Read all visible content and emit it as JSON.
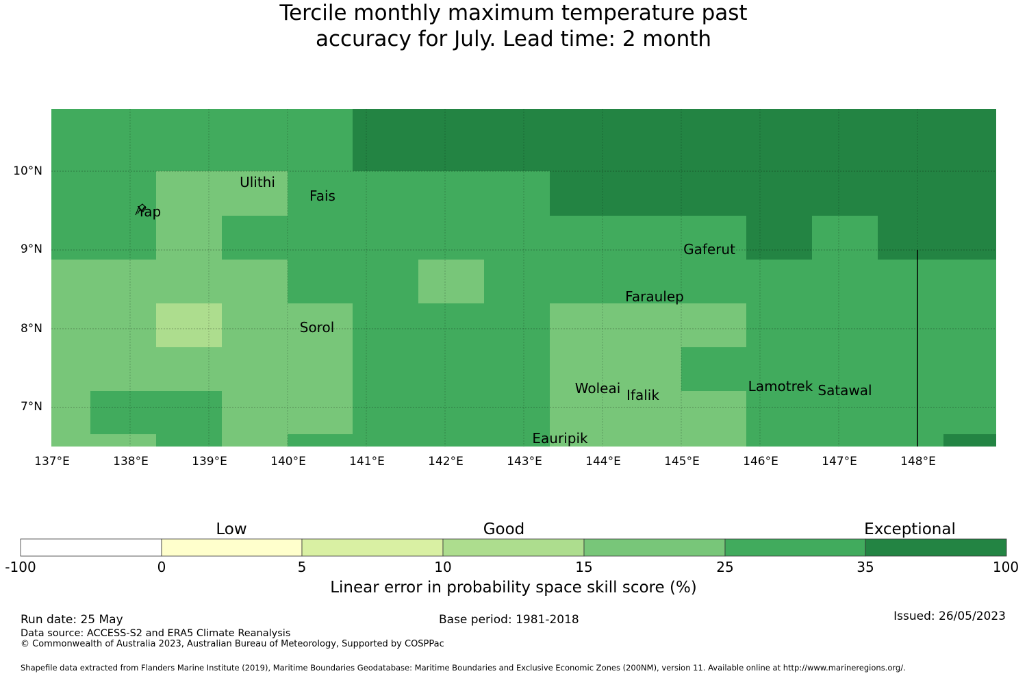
{
  "title": {
    "line1": "Tercile monthly maximum temperature past",
    "line2": "accuracy for July. Lead time: 2 month"
  },
  "map": {
    "lon_range": [
      137,
      149
    ],
    "lat_range": [
      6.5,
      10.8
    ],
    "x_ticks": [
      "137°E",
      "138°E",
      "139°E",
      "140°E",
      "141°E",
      "142°E",
      "143°E",
      "144°E",
      "145°E",
      "146°E",
      "147°E",
      "148°E"
    ],
    "y_ticks": [
      "10°N",
      "9°N",
      "8°N",
      "7°N"
    ],
    "grid": true,
    "places": [
      "Ulithi",
      "Fais",
      "Yap",
      "Gaferut",
      "Faraulep",
      "Sorol",
      "Woleai",
      "Ifalik",
      "Lamotrek",
      "Satawal",
      "Eauripik"
    ],
    "category_colors": {
      "c15_25": "#78c679",
      "c10_15": "#addd8e",
      "c25_35": "#41ab5d",
      "c35_100": "#238443"
    }
  },
  "colorbar": {
    "categories": [
      "Low",
      "Good",
      "Exceptional"
    ],
    "ticks": [
      "-100",
      "0",
      "5",
      "10",
      "15",
      "25",
      "35",
      "100"
    ],
    "colors": [
      "#ffffff",
      "#ffffcc",
      "#d9f0a3",
      "#addd8e",
      "#78c679",
      "#41ab5d",
      "#238443"
    ],
    "label": "Linear error in probability space skill score (%)"
  },
  "footer": {
    "run_date": "Run date: 25 May",
    "base_period": "Base period: 1981-2018",
    "issued": "Issued: 26/05/2023",
    "data_source": "Data source: ACCESS-S2 and ERA5 Climate Reanalysis",
    "copyright": "© Commonwealth of Australia 2023, Australian Bureau of Meteorology, Supported by COSPPac",
    "shapefile": "Shapefile data extracted from Flanders Marine Institute (2019), Maritime Boundaries Geodatabase: Maritime Boundaries and Exclusive Economic Zones (200NM), version 11. Available online at http://www.marineregions.org/."
  }
}
